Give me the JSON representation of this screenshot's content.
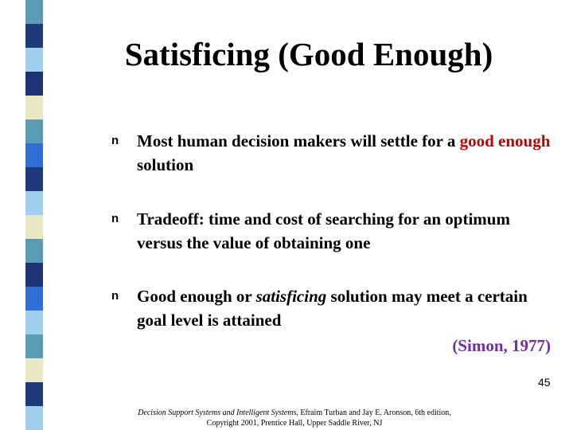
{
  "slide": {
    "title": "Satisficing (Good Enough)",
    "bullets": [
      {
        "marker": "n",
        "segments": [
          {
            "text": "Most human decision makers will settle for a "
          },
          {
            "text": "good enough",
            "color": "#c00000"
          },
          {
            "text": " solution"
          }
        ]
      },
      {
        "marker": "n",
        "segments": [
          {
            "text": "Tradeoff: time and cost of searching for an optimum versus the value of obtaining one"
          }
        ]
      },
      {
        "marker": "n",
        "segments": [
          {
            "text": "Good enough or "
          },
          {
            "text": "satisficing",
            "italic": true
          },
          {
            "text": " solution may meet a certain goal level is attained"
          }
        ]
      }
    ],
    "citation": "(Simon, 1977)",
    "citation_color": "#7030a0",
    "page_number": "45",
    "footer": [
      {
        "text": "Decision Support Systems and Intelligent Systems",
        "italic": true
      },
      {
        "text": ", Efraim Turban and Jay E. Aronson, 6th edition, Copyright 2001, Prentice Hall, Upper Saddle River, NJ"
      }
    ]
  }
}
